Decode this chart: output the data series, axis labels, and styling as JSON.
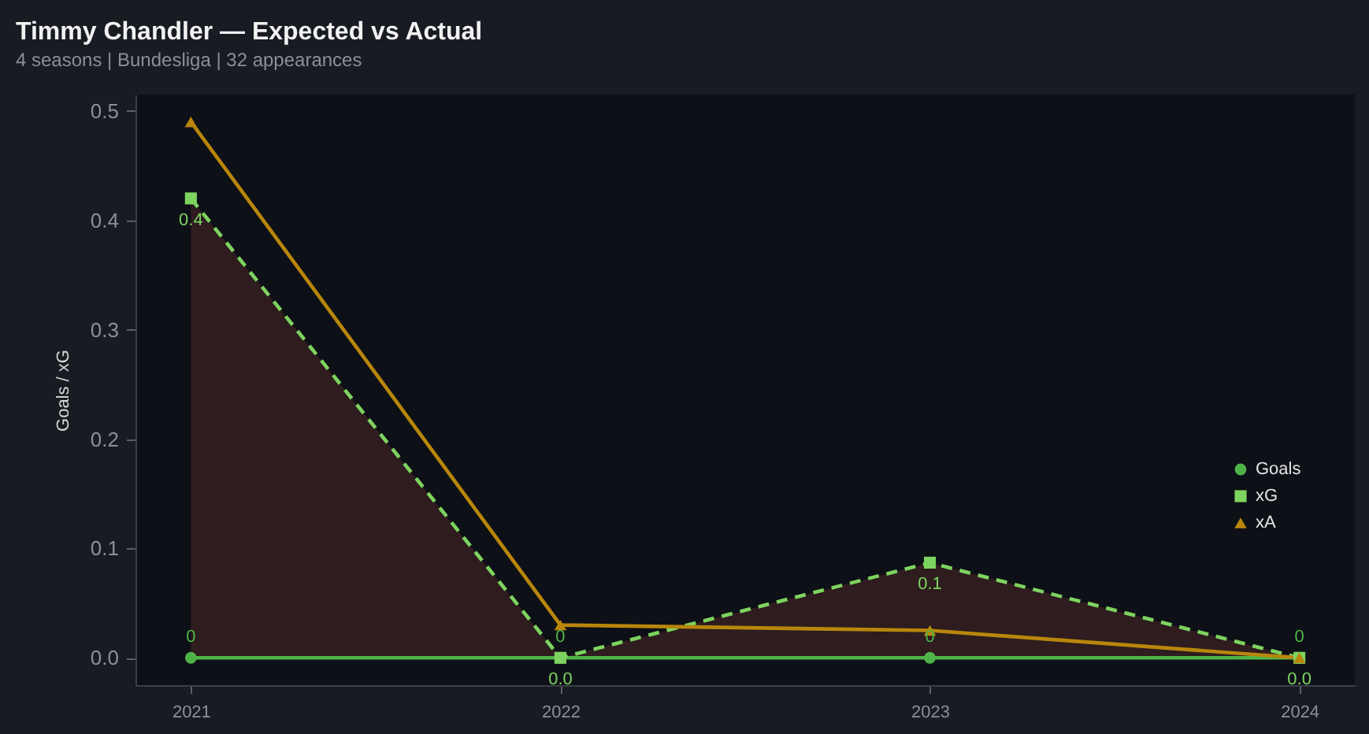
{
  "chart_data": {
    "type": "line",
    "title": "Timmy Chandler — Expected vs Actual",
    "subtitle": "4 seasons | Bundesliga | 32 appearances",
    "ylabel": "Goals / xG",
    "categories": [
      "2021",
      "2022",
      "2023",
      "2024"
    ],
    "series": [
      {
        "name": "Goals",
        "color": "#4fb447",
        "values": [
          0,
          0,
          0,
          0
        ],
        "marker": "circle",
        "line_style": "solid",
        "value_labels": [
          "0",
          "0",
          "0",
          "0"
        ]
      },
      {
        "name": "xG",
        "color": "#7dd35f",
        "values": [
          0.42,
          0.0,
          0.087,
          0.0
        ],
        "marker": "square",
        "line_style": "dashed",
        "value_labels": [
          "0.4",
          "0.0",
          "0.1",
          "0.0"
        ],
        "lower": [
          0,
          0,
          0,
          0
        ],
        "upper": [
          0.42,
          0.0,
          0.087,
          0.0
        ]
      },
      {
        "name": "xA",
        "color": "#b8860b",
        "values": [
          0.49,
          0.03,
          0.025,
          0.0
        ],
        "marker": "triangle",
        "line_style": "solid"
      }
    ],
    "ylim": [
      -0.025,
      0.515
    ],
    "yticks": [
      {
        "value": 0,
        "label": "0.0"
      },
      {
        "value": 0.1,
        "label": "0.1"
      },
      {
        "value": 0.2,
        "label": "0.2"
      },
      {
        "value": 0.3,
        "label": "0.3"
      },
      {
        "value": 0.4,
        "label": "0.4"
      },
      {
        "value": 0.5,
        "label": "0.5"
      }
    ],
    "legend": "bottom right"
  }
}
